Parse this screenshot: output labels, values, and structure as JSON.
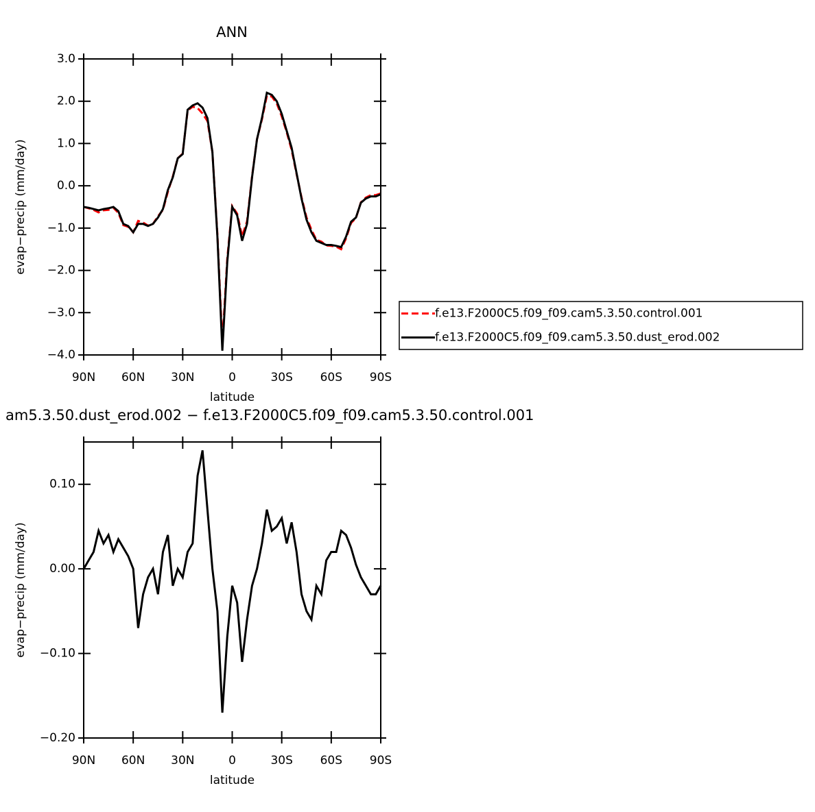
{
  "chart_data": [
    {
      "type": "line",
      "title": "ANN",
      "x_label": "latitude",
      "y_label": "evap−precip (mm/day)",
      "x": [
        90,
        87,
        84,
        81,
        78,
        75,
        72,
        69,
        66,
        63,
        60,
        57,
        54,
        51,
        48,
        45,
        42,
        39,
        36,
        33,
        30,
        27,
        24,
        21,
        18,
        15,
        12,
        9,
        6,
        3,
        0,
        -3,
        -6,
        -9,
        -12,
        -15,
        -18,
        -21,
        -24,
        -27,
        -30,
        -33,
        -36,
        -39,
        -42,
        -45,
        -48,
        -51,
        -54,
        -57,
        -60,
        -63,
        -66,
        -69,
        -72,
        -75,
        -78,
        -81,
        -84,
        -87,
        -90
      ],
      "series": [
        {
          "name": "f.e13.F2000C5.f09_f09.cam5.3.50.control.001",
          "color": "#ff0000",
          "linestyle": "dashed",
          "values": [
            -0.5,
            -0.53,
            -0.57,
            -0.63,
            -0.58,
            -0.57,
            -0.52,
            -0.64,
            -0.93,
            -0.97,
            -1.1,
            -0.83,
            -0.87,
            -0.94,
            -0.9,
            -0.72,
            -0.57,
            -0.14,
            0.22,
            0.65,
            0.76,
            1.78,
            1.87,
            1.84,
            1.71,
            1.53,
            0.8,
            -1.15,
            -3.73,
            -1.72,
            -0.48,
            -0.66,
            -1.19,
            -0.84,
            0.22,
            1.1,
            1.57,
            2.13,
            2.11,
            1.95,
            1.64,
            1.27,
            0.85,
            0.28,
            -0.27,
            -0.75,
            -1.04,
            -1.28,
            -1.32,
            -1.41,
            -1.42,
            -1.44,
            -1.5,
            -1.24,
            -0.88,
            -0.76,
            -0.39,
            -0.28,
            -0.22,
            -0.22,
            -0.18
          ]
        },
        {
          "name": "f.e13.F2000C5.f09_f09.cam5.3.50.dust_erod.002",
          "color": "#000000",
          "linestyle": "solid",
          "values": [
            -0.5,
            -0.52,
            -0.55,
            -0.58,
            -0.55,
            -0.53,
            -0.5,
            -0.6,
            -0.9,
            -0.95,
            -1.1,
            -0.9,
            -0.9,
            -0.95,
            -0.9,
            -0.75,
            -0.55,
            -0.1,
            0.2,
            0.65,
            0.75,
            1.8,
            1.9,
            1.95,
            1.85,
            1.6,
            0.8,
            -1.2,
            -3.9,
            -1.8,
            -0.5,
            -0.7,
            -1.3,
            -0.9,
            0.2,
            1.1,
            1.6,
            2.2,
            2.15,
            2.0,
            1.7,
            1.3,
            0.9,
            0.3,
            -0.3,
            -0.8,
            -1.1,
            -1.3,
            -1.35,
            -1.4,
            -1.4,
            -1.42,
            -1.45,
            -1.2,
            -0.85,
            -0.75,
            -0.4,
            -0.3,
            -0.25,
            -0.25,
            -0.2
          ]
        }
      ],
      "xlim": [
        90,
        -90
      ],
      "xticks": [
        {
          "value": 90,
          "label": "90N"
        },
        {
          "value": 60,
          "label": "60N"
        },
        {
          "value": 30,
          "label": "30N"
        },
        0,
        {
          "value": -30,
          "label": "30S"
        },
        {
          "value": -60,
          "label": "60S"
        },
        {
          "value": -90,
          "label": "90S"
        }
      ],
      "ylim": [
        -4,
        3
      ],
      "yticks": [
        {
          "value": 3,
          "label": "3.0"
        },
        {
          "value": 2,
          "label": "2.0"
        },
        {
          "value": 1,
          "label": "1.0"
        },
        {
          "value": 0,
          "label": "0.0"
        },
        {
          "value": -1,
          "label": "−1.0"
        },
        {
          "value": -2,
          "label": "−2.0"
        },
        {
          "value": -3,
          "label": "−3.0"
        },
        {
          "value": -4,
          "label": "−4.0"
        }
      ],
      "legend": "outside right"
    },
    {
      "type": "line",
      "title": "am5.3.50.dust_erod.002 − f.e13.F2000C5.f09_f09.cam5.3.50.control.001",
      "x_label": "latitude",
      "y_label": "evap−precip (mm/day)",
      "x": [
        90,
        87,
        84,
        81,
        78,
        75,
        72,
        69,
        66,
        63,
        60,
        57,
        54,
        51,
        48,
        45,
        42,
        39,
        36,
        33,
        30,
        27,
        24,
        21,
        18,
        15,
        12,
        9,
        6,
        3,
        0,
        -3,
        -6,
        -9,
        -12,
        -15,
        -18,
        -21,
        -24,
        -27,
        -30,
        -33,
        -36,
        -39,
        -42,
        -45,
        -48,
        -51,
        -54,
        -57,
        -60,
        -63,
        -66,
        -69,
        -72,
        -75,
        -78,
        -81,
        -84,
        -87,
        -90
      ],
      "series": [
        {
          "color": "#000000",
          "linestyle": "solid",
          "values": [
            0.0,
            0.01,
            0.02,
            0.045,
            0.03,
            0.04,
            0.02,
            0.035,
            0.025,
            0.015,
            0.0,
            -0.07,
            -0.03,
            -0.01,
            0.0,
            -0.03,
            0.02,
            0.04,
            -0.02,
            0.0,
            -0.01,
            0.02,
            0.03,
            0.11,
            0.14,
            0.07,
            0.0,
            -0.05,
            -0.17,
            -0.08,
            -0.02,
            -0.04,
            -0.11,
            -0.06,
            -0.02,
            0.0,
            0.03,
            0.07,
            0.045,
            0.05,
            0.06,
            0.03,
            0.055,
            0.02,
            -0.03,
            -0.05,
            -0.06,
            -0.02,
            -0.03,
            0.01,
            0.02,
            0.02,
            0.045,
            0.04,
            0.025,
            0.005,
            -0.01,
            -0.02,
            -0.03,
            -0.03,
            -0.02
          ]
        }
      ],
      "xlim": [
        90,
        -90
      ],
      "xticks": [
        {
          "value": 90,
          "label": "90N"
        },
        {
          "value": 60,
          "label": "60N"
        },
        {
          "value": 30,
          "label": "30N"
        },
        0,
        {
          "value": -30,
          "label": "30S"
        },
        {
          "value": -60,
          "label": "60S"
        },
        {
          "value": -90,
          "label": "90S"
        }
      ],
      "ylim": [
        -0.2,
        0.15
      ],
      "yticks": [
        {
          "value": 0.1,
          "label": "0.10"
        },
        {
          "value": 0,
          "label": "0.00"
        },
        {
          "value": -0.1,
          "label": "−0.10"
        },
        {
          "value": -0.2,
          "label": "−0.20"
        }
      ]
    }
  ]
}
